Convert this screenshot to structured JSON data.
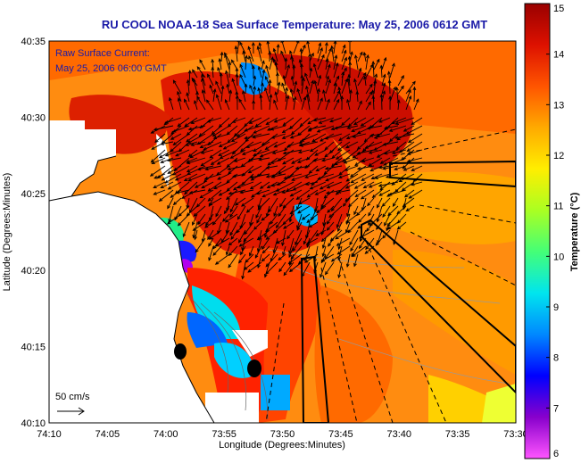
{
  "title": "RU COOL  NOAA-18  Sea Surface Temperature:  May 25, 2006 0612 GMT",
  "annotation": {
    "line1": "Raw Surface Current:",
    "line2": "May 25, 2006 06:00 GMT"
  },
  "scale_label": "50 cm/s",
  "axes": {
    "x_label": "Longitude (Degrees:Minutes)",
    "y_label": "Latitude (Degrees:Minutes)",
    "x_ticks": [
      "74:10",
      "74:05",
      "74:00",
      "73:55",
      "73:50",
      "73:45",
      "73:40",
      "73:35",
      "73:30"
    ],
    "y_ticks": [
      "40:35",
      "40:30",
      "40:25",
      "40:20",
      "40:15",
      "40:10"
    ]
  },
  "colorbar": {
    "label": "Temperature (°C)",
    "min": 6,
    "max": 15,
    "ticks": [
      "15",
      "14",
      "13",
      "12",
      "11",
      "10",
      "9",
      "8",
      "7",
      "6"
    ],
    "colors": [
      "#ff55ff",
      "#8800cc",
      "#0000ff",
      "#0088ff",
      "#00e5ee",
      "#44ff77",
      "#aaff22",
      "#ffee00",
      "#ffaa00",
      "#ff5500",
      "#dd1100",
      "#990000"
    ]
  }
}
